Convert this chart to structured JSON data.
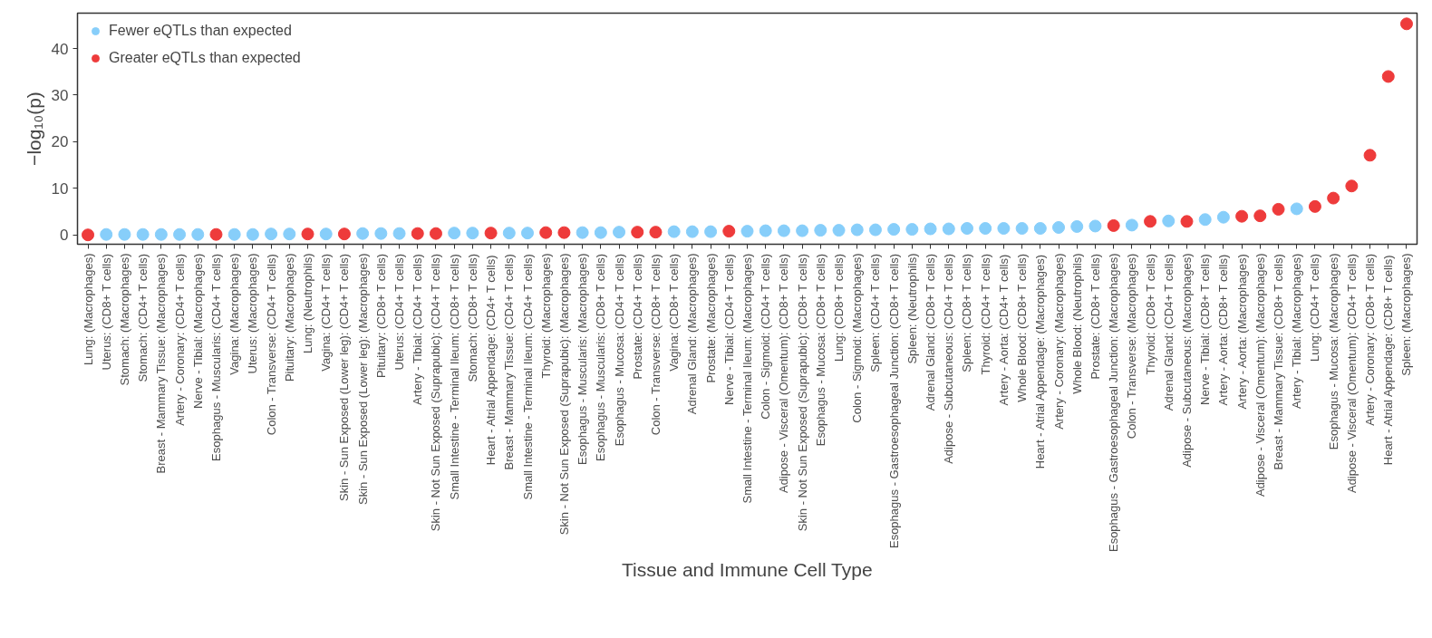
{
  "chart_data": {
    "type": "scatter",
    "xlabel": "Tissue and Immune Cell Type",
    "ylabel": "−log₁₀(p)",
    "categories": [
      "Lung: (Macrophages)",
      "Uterus: (CD8+ T cells)",
      "Stomach: (Macrophages)",
      "Stomach: (CD4+ T cells)",
      "Breast - Mammary Tissue: (Macrophages)",
      "Artery - Coronary: (CD4+ T cells)",
      "Nerve - Tibial: (Macrophages)",
      "Esophagus - Muscularis: (CD4+ T cells)",
      "Vagina: (Macrophages)",
      "Uterus: (Macrophages)",
      "Colon - Transverse: (CD4+ T cells)",
      "Pituitary: (Macrophages)",
      "Lung: (Neutrophils)",
      "Vagina: (CD4+ T cells)",
      "Skin - Sun Exposed (Lower leg): (CD4+ T cells)",
      "Skin - Sun Exposed (Lower leg): (Macrophages)",
      "Pituitary: (CD8+ T cells)",
      "Uterus: (CD4+ T cells)",
      "Artery - Tibial: (CD4+ T cells)",
      "Skin - Not Sun Exposed (Suprapubic): (CD4+ T cells)",
      "Small Intestine - Terminal Ileum: (CD8+ T cells)",
      "Stomach: (CD8+ T cells)",
      "Heart - Atrial Appendage: (CD4+ T cells)",
      "Breast - Mammary Tissue: (CD4+ T cells)",
      "Small Intestine - Terminal Ileum: (CD4+ T cells)",
      "Thyroid: (Macrophages)",
      "Skin - Not Sun Exposed (Suprapubic): (Macrophages)",
      "Esophagus - Muscularis: (Macrophages)",
      "Esophagus - Muscularis: (CD8+ T cells)",
      "Esophagus - Mucosa: (CD4+ T cells)",
      "Prostate: (CD4+ T cells)",
      "Colon - Transverse: (CD8+ T cells)",
      "Vagina: (CD8+ T cells)",
      "Adrenal Gland: (Macrophages)",
      "Prostate: (Macrophages)",
      "Nerve - Tibial: (CD4+ T cells)",
      "Small Intestine - Terminal Ileum: (Macrophages)",
      "Colon - Sigmoid: (CD4+ T cells)",
      "Adipose - Visceral (Omentum): (CD8+ T cells)",
      "Skin - Not Sun Exposed (Suprapubic): (CD8+ T cells)",
      "Esophagus - Mucosa: (CD8+ T cells)",
      "Lung: (CD8+ T cells)",
      "Colon - Sigmoid: (Macrophages)",
      "Spleen: (CD4+ T cells)",
      "Esophagus - Gastroesophageal Junction: (CD8+ T cells)",
      "Spleen: (Neutrophils)",
      "Adrenal Gland: (CD8+ T cells)",
      "Adipose - Subcutaneous: (CD4+ T cells)",
      "Spleen: (CD8+ T cells)",
      "Thyroid: (CD4+ T cells)",
      "Artery - Aorta: (CD4+ T cells)",
      "Whole Blood: (CD8+ T cells)",
      "Heart - Atrial Appendage: (Macrophages)",
      "Artery - Coronary: (Macrophages)",
      "Whole Blood: (Neutrophils)",
      "Prostate: (CD8+ T cells)",
      "Esophagus - Gastroesophageal Junction: (Macrophages)",
      "Colon - Transverse: (Macrophages)",
      "Thyroid: (CD8+ T cells)",
      "Adrenal Gland: (CD4+ T cells)",
      "Adipose - Subcutaneous: (Macrophages)",
      "Nerve - Tibial: (CD8+ T cells)",
      "Artery - Aorta: (CD8+ T cells)",
      "Artery - Aorta: (Macrophages)",
      "Adipose - Visceral (Omentum): (Macrophages)",
      "Breast - Mammary Tissue: (CD8+ T cells)",
      "Artery - Tibial: (Macrophages)",
      "Lung: (CD4+ T cells)",
      "Esophagus - Mucosa: (Macrophages)",
      "Adipose - Visceral (Omentum): (CD4+ T cells)",
      "Artery - Coronary: (CD8+ T cells)",
      "Heart - Atrial Appendage: (CD8+ T cells)",
      "Spleen: (Macrophages)"
    ],
    "series": [
      {
        "name": "Fewer eQTLs than expected",
        "color": "#87cefa",
        "values": [
          null,
          0.1,
          0.1,
          0.1,
          0.1,
          0.1,
          0.1,
          null,
          0.1,
          0.1,
          0.2,
          0.2,
          null,
          0.2,
          null,
          0.3,
          0.3,
          0.3,
          null,
          null,
          0.4,
          0.4,
          null,
          0.4,
          0.4,
          null,
          null,
          0.5,
          0.5,
          0.6,
          null,
          null,
          0.7,
          0.7,
          0.7,
          null,
          0.8,
          0.9,
          0.9,
          0.9,
          1.0,
          1.0,
          1.1,
          1.1,
          1.2,
          1.2,
          1.3,
          1.3,
          1.4,
          1.4,
          1.4,
          1.4,
          1.4,
          1.6,
          1.8,
          1.9,
          null,
          2.1,
          null,
          3.0,
          null,
          3.3,
          3.8,
          null,
          null,
          null,
          5.6,
          null,
          null,
          null,
          null,
          null,
          null
        ]
      },
      {
        "name": "Greater eQTLs than expected",
        "color": "#ee3b3b",
        "values": [
          0.0,
          null,
          null,
          null,
          null,
          null,
          null,
          0.1,
          null,
          null,
          null,
          null,
          0.2,
          null,
          0.2,
          null,
          null,
          null,
          0.3,
          0.3,
          null,
          null,
          0.4,
          null,
          null,
          0.5,
          0.5,
          null,
          null,
          null,
          0.6,
          0.6,
          null,
          null,
          null,
          0.8,
          null,
          null,
          null,
          null,
          null,
          null,
          null,
          null,
          null,
          null,
          null,
          null,
          null,
          null,
          null,
          null,
          null,
          null,
          null,
          null,
          2.0,
          null,
          2.9,
          null,
          2.9,
          null,
          null,
          4.0,
          4.1,
          5.5,
          null,
          6.1,
          7.9,
          10.5,
          17.1,
          34.0,
          45.3
        ]
      }
    ],
    "ylim": [
      -2,
      47.6
    ],
    "yticks": [
      0,
      10,
      20,
      30,
      40
    ],
    "grid": false,
    "legend": "top left",
    "marker": "circle"
  }
}
